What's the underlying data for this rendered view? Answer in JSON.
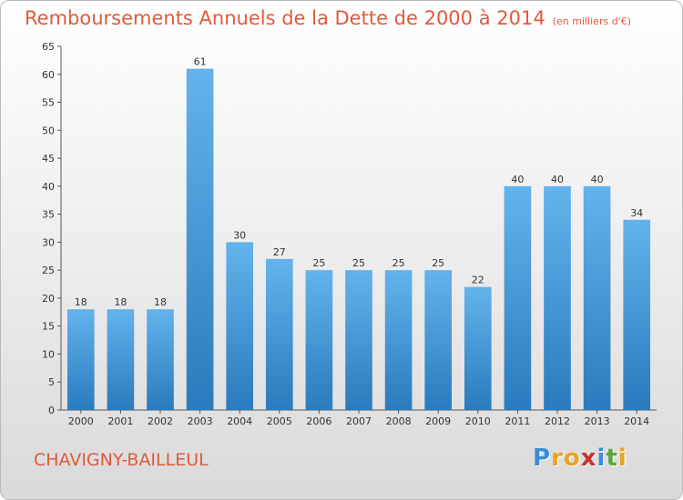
{
  "title": "Remboursements Annuels de la Dette de 2000 à 2014",
  "subtitle": "(en milliers d'€)",
  "commune": "CHAVIGNY-BAILLEUL",
  "logo": {
    "letters": [
      "P",
      "r",
      "o",
      "x",
      "i",
      "t",
      "i"
    ],
    "colors": [
      "#3a8fd8",
      "#e8a321",
      "#e8a321",
      "#cc2f2f",
      "#3a8fd8",
      "#56a83a",
      "#e8a321"
    ]
  },
  "colors": {
    "accent": "#e05a3c",
    "bar_light": "#63b3ec",
    "bar_dark": "#2a7bbd"
  },
  "chart_data": {
    "type": "bar",
    "title": "Remboursements Annuels de la Dette de 2000 à 2014",
    "subtitle": "(en milliers d'€)",
    "categories": [
      "2000",
      "2001",
      "2002",
      "2003",
      "2004",
      "2005",
      "2006",
      "2007",
      "2008",
      "2009",
      "2010",
      "2011",
      "2012",
      "2013",
      "2014"
    ],
    "values": [
      18,
      18,
      18,
      61,
      30,
      27,
      25,
      25,
      25,
      25,
      22,
      40,
      40,
      40,
      34
    ],
    "ylim": [
      0,
      65
    ],
    "yticks": [
      0,
      5,
      10,
      15,
      20,
      25,
      30,
      35,
      40,
      45,
      50,
      55,
      60,
      65
    ],
    "grid": false,
    "data_labels": true
  }
}
